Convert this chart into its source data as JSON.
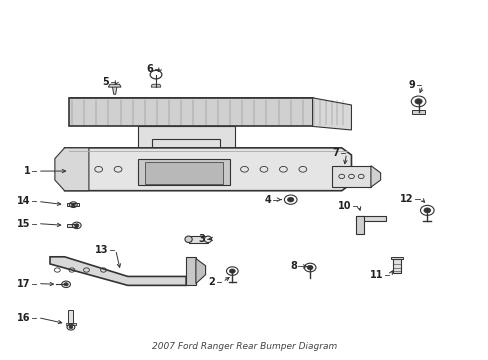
{
  "title": "2007 Ford Ranger Rear Bumper Diagram",
  "bg_color": "#ffffff",
  "line_color": "#333333",
  "label_color": "#222222",
  "fig_width": 4.89,
  "fig_height": 3.6,
  "dpi": 100
}
